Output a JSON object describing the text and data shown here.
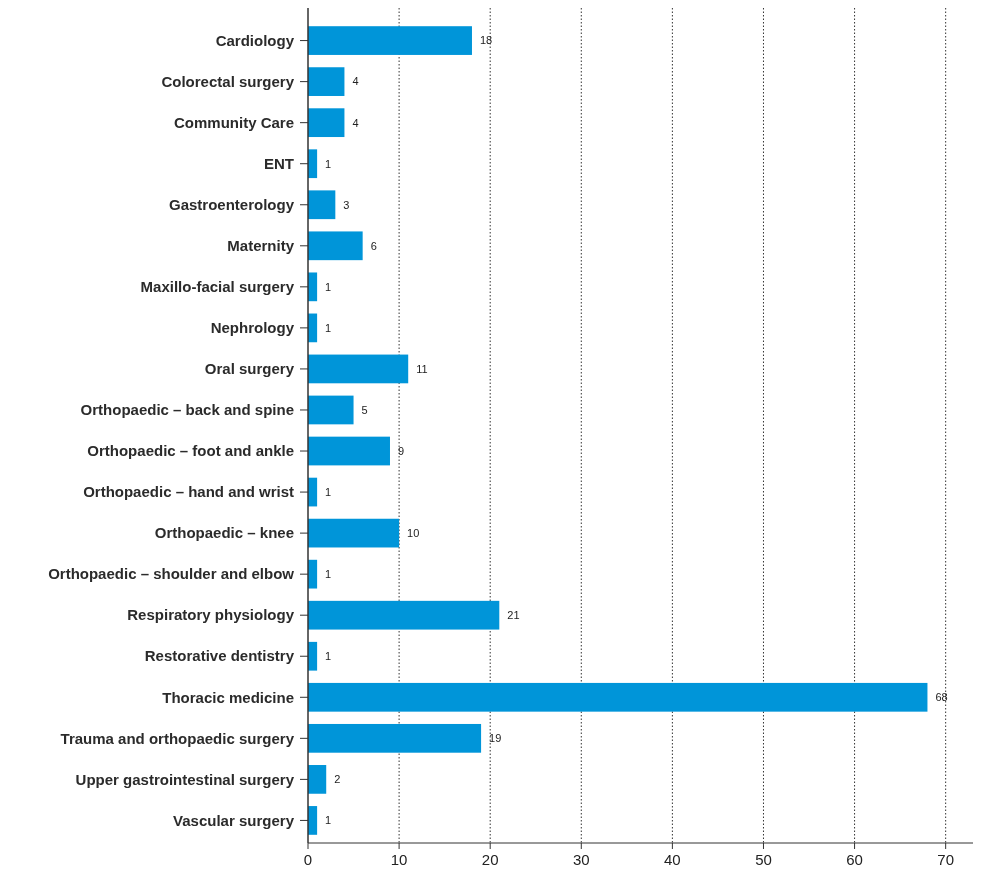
{
  "chart_data": {
    "type": "bar",
    "orientation": "horizontal",
    "categories": [
      "Cardiology",
      "Colorectal surgery",
      "Community Care",
      "ENT",
      "Gastroenterology",
      "Maternity",
      "Maxillo-facial surgery",
      "Nephrology",
      "Oral surgery",
      "Orthopaedic – back and spine",
      "Orthopaedic – foot and ankle",
      "Orthopaedic – hand and wrist",
      "Orthopaedic – knee",
      "Orthopaedic – shoulder and elbow",
      "Respiratory physiology",
      "Restorative dentistry",
      "Thoracic medicine",
      "Trauma and orthopaedic surgery",
      "Upper gastrointestinal surgery",
      "Vascular surgery"
    ],
    "values": [
      18,
      4,
      4,
      1,
      3,
      6,
      1,
      1,
      11,
      5,
      9,
      1,
      10,
      1,
      21,
      1,
      68,
      19,
      2,
      1
    ],
    "color": "#0095d9",
    "xlim": [
      0,
      73
    ],
    "xticks": [
      0,
      10,
      20,
      30,
      40,
      50,
      60,
      70
    ],
    "grid": "x",
    "data_labels": true
  }
}
